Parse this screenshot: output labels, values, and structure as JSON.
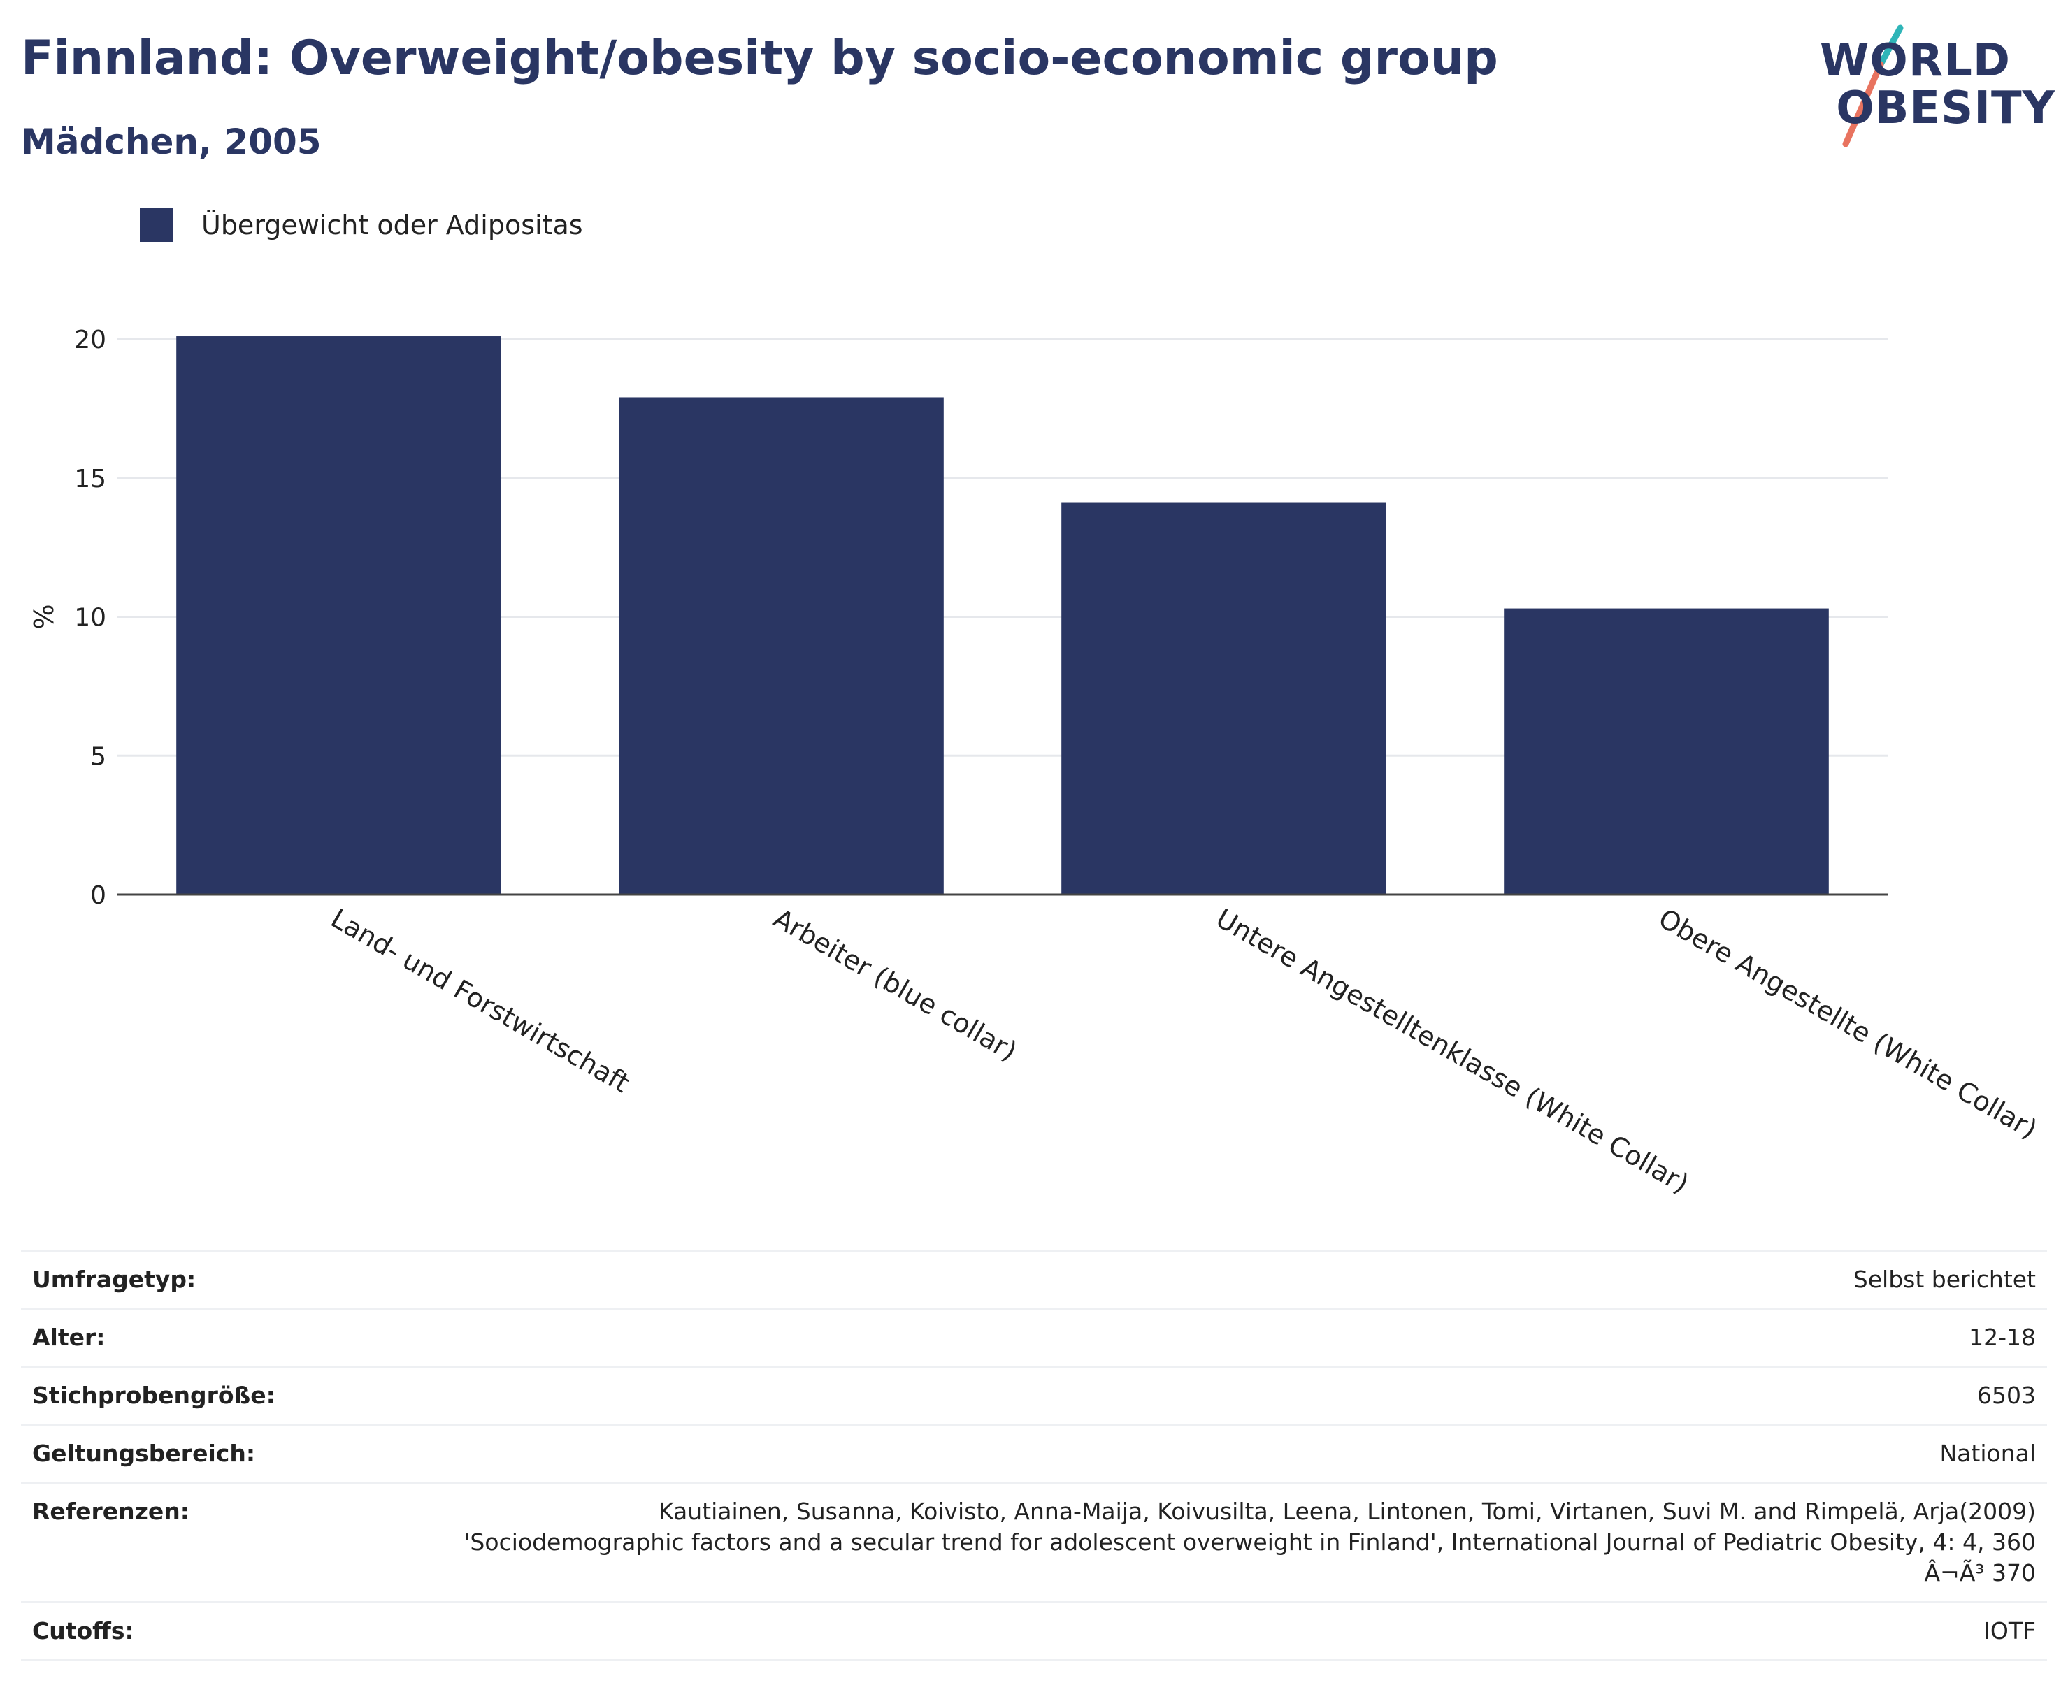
{
  "header": {
    "title": "Finnland: Overweight/obesity by socio-economic group",
    "subtitle": "Mädchen, 2005"
  },
  "logo": {
    "line1": "WORLD",
    "line2": "OBESITY"
  },
  "colors": {
    "bar": "#2a3663",
    "text": "#2a3663",
    "grid": "#e6e8ec",
    "accent_teal": "#2fb5b8",
    "accent_coral": "#e8735f"
  },
  "chart_data": {
    "type": "bar",
    "categories": [
      "Land- und Forstwirtschaft",
      "Arbeiter (blue collar)",
      "Untere Angestelltenklasse (White Collar)",
      "Obere Angestellte (White Collar)"
    ],
    "series": [
      {
        "name": "Übergewicht oder Adipositas",
        "values": [
          20.1,
          17.9,
          14.1,
          10.3
        ]
      }
    ],
    "ylabel": "%",
    "ylim": [
      0,
      20
    ],
    "yticks": [
      "0",
      "5",
      "10",
      "15",
      "20"
    ],
    "grid": true,
    "legend": "top-left"
  },
  "meta": {
    "survey_type_label": "Umfragetyp:",
    "survey_type_value": "Selbst berichtet",
    "age_label": "Alter:",
    "age_value": "12-18",
    "sample_label": "Stichprobengröße:",
    "sample_value": "6503",
    "scope_label": "Geltungsbereich:",
    "scope_value": "National",
    "references_label": "Referenzen:",
    "references_line1": "Kautiainen, Susanna, Koivisto, Anna-Maija, Koivusilta, Leena, Lintonen, Tomi, Virtanen, Suvi M. and Rimpelä, Arja(2009)",
    "references_line2": "'Sociodemographic factors and a secular trend for adolescent overweight in Finland', International Journal of Pediatric Obesity, 4: 4, 360",
    "references_line3": "Â¬Ã³ 370",
    "cutoffs_label": "Cutoffs:",
    "cutoffs_value": "IOTF"
  }
}
